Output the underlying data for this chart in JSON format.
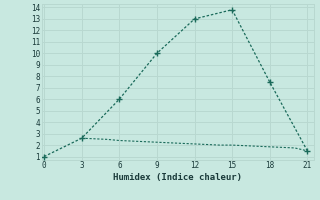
{
  "title": "",
  "xlabel": "Humidex (Indice chaleur)",
  "background_color": "#c8e8e0",
  "grid_color": "#b8d8d0",
  "line_color": "#1a6a5a",
  "x_ticks": [
    0,
    3,
    6,
    9,
    12,
    15,
    18,
    21
  ],
  "y_ticks": [
    1,
    2,
    3,
    4,
    5,
    6,
    7,
    8,
    9,
    10,
    11,
    12,
    13,
    14
  ],
  "xlim": [
    -0.2,
    21.5
  ],
  "ylim": [
    0.7,
    14.3
  ],
  "line1_x": [
    0,
    3,
    6,
    9,
    12,
    15,
    18,
    21
  ],
  "line1_y": [
    1,
    2.6,
    6,
    10,
    13,
    13.8,
    7.5,
    1.5
  ],
  "line2_x": [
    3,
    4,
    5,
    6,
    7,
    8,
    9,
    10,
    11,
    12,
    13,
    14,
    15,
    16,
    17,
    18,
    19,
    20,
    21
  ],
  "line2_y": [
    2.6,
    2.55,
    2.5,
    2.4,
    2.35,
    2.3,
    2.25,
    2.2,
    2.15,
    2.1,
    2.05,
    2.0,
    2.0,
    1.95,
    1.9,
    1.85,
    1.8,
    1.75,
    1.5
  ],
  "tick_fontsize": 5.5,
  "xlabel_fontsize": 6.5
}
